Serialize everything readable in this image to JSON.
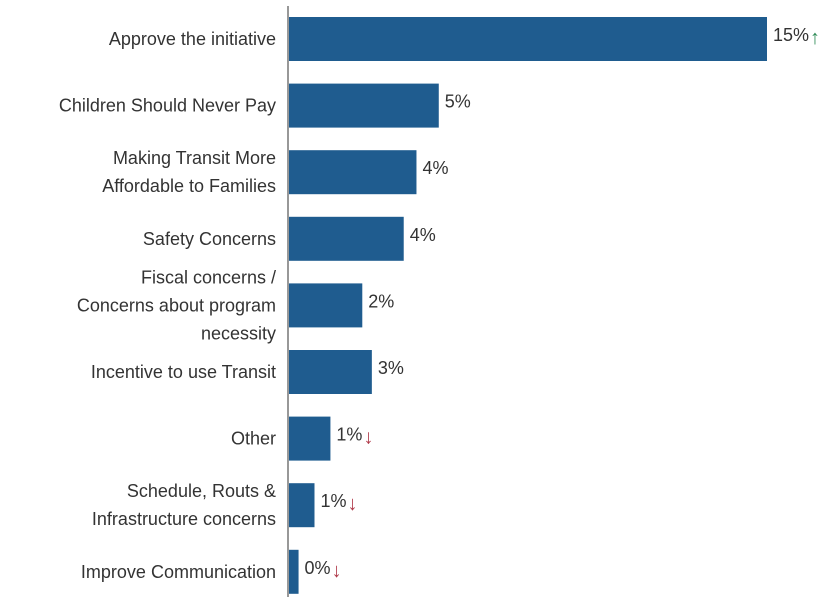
{
  "chart_data": {
    "type": "bar",
    "orientation": "horizontal",
    "categories": [
      [
        "Approve the initiative"
      ],
      [
        "Children Should Never Pay"
      ],
      [
        "Making Transit More",
        "Affordable to Families"
      ],
      [
        "Safety Concerns"
      ],
      [
        "Fiscal concerns /",
        "Concerns about program",
        "necessity"
      ],
      [
        "Incentive to use Transit"
      ],
      [
        "Other"
      ],
      [
        "Schedule, Routs &",
        "Infrastructure concerns"
      ],
      [
        "Improve Communication"
      ]
    ],
    "values": [
      15,
      5,
      4,
      4,
      2,
      3,
      1,
      1,
      0
    ],
    "value_labels": [
      "15%",
      "5%",
      "4%",
      "4%",
      "2%",
      "3%",
      "1%",
      "1%",
      "0%"
    ],
    "bar_lengths_pct": [
      15,
      4.7,
      4,
      3.6,
      2.3,
      2.6,
      1.3,
      0.8,
      0.3
    ],
    "trend": [
      "up",
      "",
      "",
      "",
      "",
      "",
      "down",
      "down",
      "down"
    ],
    "trend_glyphs": {
      "up": "↑",
      "down": "↓"
    },
    "xlim": [
      0,
      15
    ],
    "colors": {
      "bar": "#1F5C8F",
      "up": "#2E8B57",
      "down": "#B03A4A",
      "axis": "#777777"
    },
    "grid": false,
    "title": "",
    "xlabel": "",
    "ylabel": ""
  }
}
